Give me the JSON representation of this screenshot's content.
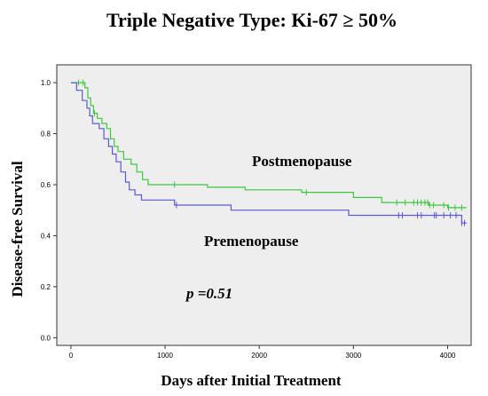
{
  "chart_data": {
    "type": "line",
    "title": "Triple Negative Type: Ki-67 ≥ 50%",
    "xlabel": "Days after Initial Treatment",
    "ylabel": "Disease-free Survival",
    "xlim": [
      -150,
      4250
    ],
    "ylim": [
      -0.03,
      1.07
    ],
    "x_ticks": [
      0,
      1000,
      2000,
      3000,
      4000
    ],
    "y_ticks": [
      0.0,
      0.2,
      0.4,
      0.6,
      0.8,
      1.0
    ],
    "y_tick_labels": [
      "0.0",
      "0.2",
      "0.4",
      "0.6",
      "0.8",
      "1.0"
    ],
    "plot_background": "#eeeeee",
    "grid": false,
    "legend": "none",
    "series": [
      {
        "name": "Postmenopause",
        "color": "#3cc83c",
        "steps": [
          [
            0,
            1.0
          ],
          [
            150,
            0.98
          ],
          [
            180,
            0.94
          ],
          [
            210,
            0.91
          ],
          [
            240,
            0.88
          ],
          [
            280,
            0.86
          ],
          [
            330,
            0.84
          ],
          [
            380,
            0.82
          ],
          [
            420,
            0.78
          ],
          [
            460,
            0.75
          ],
          [
            500,
            0.73
          ],
          [
            560,
            0.7
          ],
          [
            640,
            0.68
          ],
          [
            700,
            0.65
          ],
          [
            760,
            0.62
          ],
          [
            820,
            0.6
          ],
          [
            1450,
            0.59
          ],
          [
            1850,
            0.58
          ],
          [
            2450,
            0.57
          ],
          [
            3000,
            0.55
          ],
          [
            3300,
            0.53
          ],
          [
            3800,
            0.52
          ],
          [
            4000,
            0.51
          ],
          [
            4200,
            0.51
          ]
        ],
        "censors": [
          80,
          130,
          250,
          1100,
          2500,
          3460,
          3550,
          3640,
          3680,
          3720,
          3760,
          3790,
          3810,
          3850,
          3960,
          4010,
          4080,
          4150
        ]
      },
      {
        "name": "Premenopause",
        "color": "#5a5ad2",
        "steps": [
          [
            0,
            1.0
          ],
          [
            60,
            0.97
          ],
          [
            120,
            0.93
          ],
          [
            170,
            0.9
          ],
          [
            200,
            0.87
          ],
          [
            230,
            0.84
          ],
          [
            300,
            0.82
          ],
          [
            350,
            0.78
          ],
          [
            400,
            0.75
          ],
          [
            440,
            0.72
          ],
          [
            480,
            0.69
          ],
          [
            530,
            0.65
          ],
          [
            580,
            0.61
          ],
          [
            620,
            0.58
          ],
          [
            680,
            0.56
          ],
          [
            750,
            0.54
          ],
          [
            1100,
            0.52
          ],
          [
            1700,
            0.5
          ],
          [
            2950,
            0.48
          ],
          [
            4150,
            0.45
          ],
          [
            4200,
            0.45
          ]
        ],
        "censors": [
          1120,
          3480,
          3520,
          3680,
          3720,
          3860,
          3880,
          3960,
          4030,
          4090,
          4150,
          4180
        ]
      }
    ],
    "annotations": [
      "Postmenopause",
      "Premenopause",
      "p =0.51"
    ]
  }
}
